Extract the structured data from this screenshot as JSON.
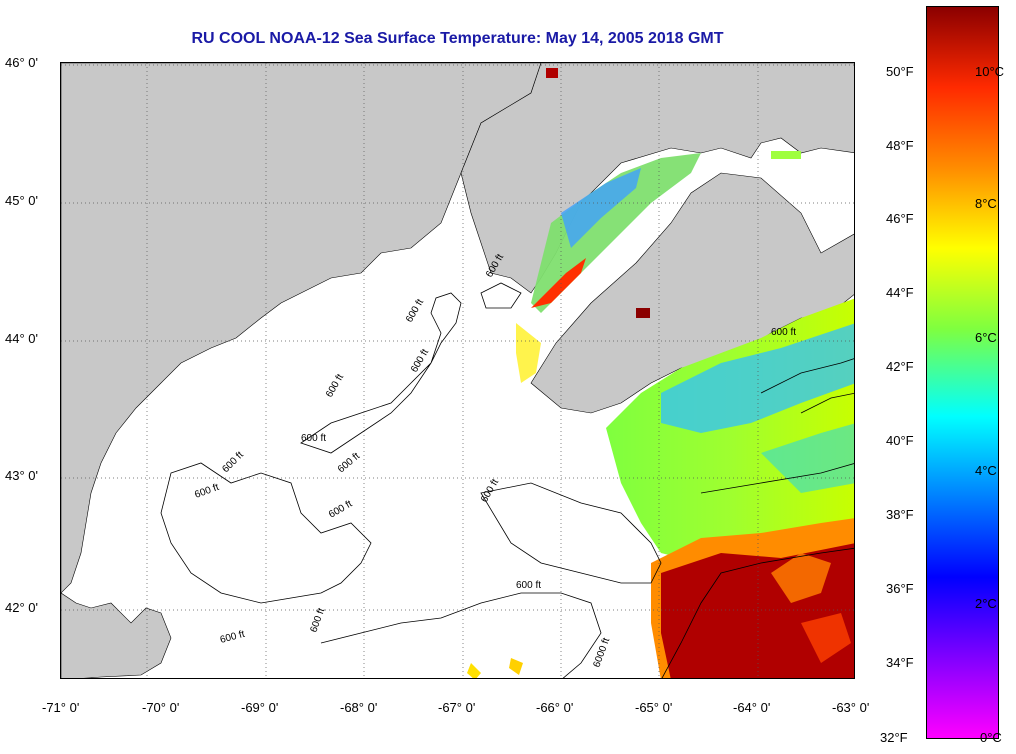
{
  "title": "RU COOL  NOAA-12  Sea Surface Temperature:  May 14, 2005 2018 GMT",
  "map": {
    "lon_range": [
      -71.1,
      -63.0
    ],
    "lat_range": [
      41.5,
      46.0
    ],
    "lon_ticks": [
      "-71° 0'",
      "-70° 0'",
      "-69° 0'",
      "-68° 0'",
      "-67° 0'",
      "-66° 0'",
      "-65° 0'",
      "-64° 0'",
      "-63° 0'"
    ],
    "lat_ticks": [
      "46° 0'",
      "45° 0'",
      "44° 0'",
      "43° 0'",
      "42° 0'"
    ],
    "land_color": "#c8c8c8",
    "no_data_color": "#ffffff",
    "grid": "dotted",
    "contour_labels": [
      "600 ft",
      "600 ft",
      "600 ft",
      "600 ft",
      "600 ft",
      "600 ft",
      "600 ft",
      "600 ft",
      "600 ft",
      "600 ft",
      "600 ft",
      "600 ft",
      "6000 ft",
      "600 ft",
      "600 ft"
    ]
  },
  "colorbar": {
    "fahrenheit_labels": [
      "50°F",
      "48°F",
      "46°F",
      "44°F",
      "42°F",
      "40°F",
      "38°F",
      "36°F",
      "34°F",
      "32°F"
    ],
    "celsius_labels": [
      "10°C",
      "8°C",
      "6°C",
      "4°C",
      "2°C",
      "0°C"
    ],
    "colors": [
      "#8b0000",
      "#ff2a00",
      "#ff8c00",
      "#ffff00",
      "#7fff3f",
      "#00ffff",
      "#0080ff",
      "#0000ff",
      "#8000ff",
      "#ff00ff"
    ]
  }
}
